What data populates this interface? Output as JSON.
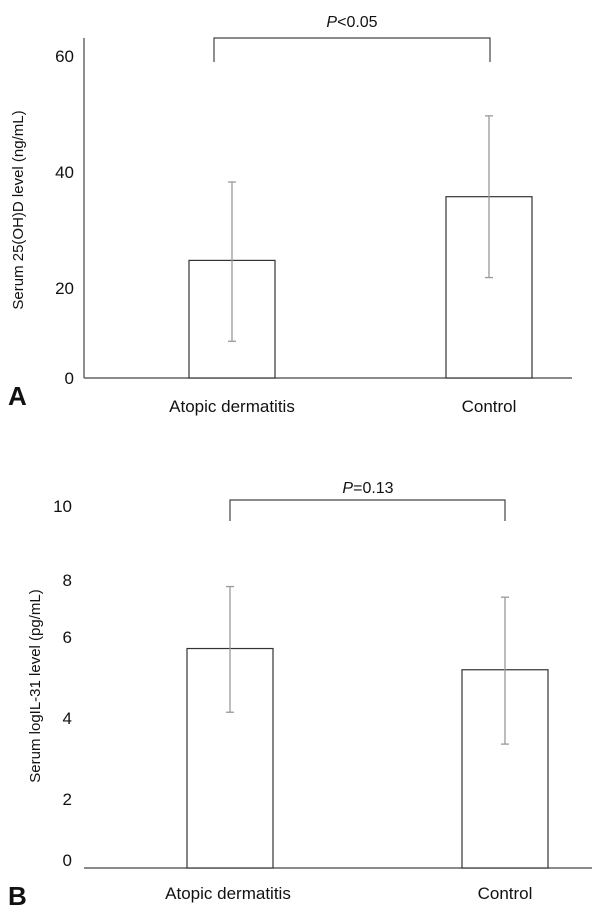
{
  "chart_data": [
    {
      "type": "bar",
      "panel_label": "A",
      "categories": [
        "Atopic dermatitis",
        "Control"
      ],
      "values": [
        24,
        37
      ],
      "error": {
        "low": [
          7.5,
          20.5
        ],
        "high": [
          40,
          53.5
        ]
      },
      "ylabel": "Serum 25(OH)D level (ng/mL)",
      "ylim": [
        0,
        60
      ],
      "yticks": [
        "0",
        "20",
        "40",
        "60"
      ],
      "annotation": {
        "italic": "P",
        "text": "<0.05"
      },
      "grid": false,
      "colors": {
        "bar_fill": "#ffffff",
        "bar_stroke": "#333333",
        "error_bar": "#999999",
        "bracket": "#444444"
      }
    },
    {
      "type": "bar",
      "panel_label": "B",
      "categories": [
        "Atopic dermatitis",
        "Control"
      ],
      "values": [
        6.2,
        5.6
      ],
      "error": {
        "low": [
          4.4,
          3.5
        ],
        "high": [
          7.95,
          7.65
        ]
      },
      "ylabel": "Serum logIL-31 level (pg/mL)",
      "ylim": [
        0,
        10
      ],
      "yticks": [
        "0",
        "2",
        "4",
        "6",
        "8",
        "10"
      ],
      "annotation": {
        "italic": "P",
        "text": "=0.13"
      },
      "grid": false,
      "colors": {
        "bar_fill": "#ffffff",
        "bar_stroke": "#333333",
        "error_bar": "#999999",
        "bracket": "#444444"
      }
    }
  ]
}
